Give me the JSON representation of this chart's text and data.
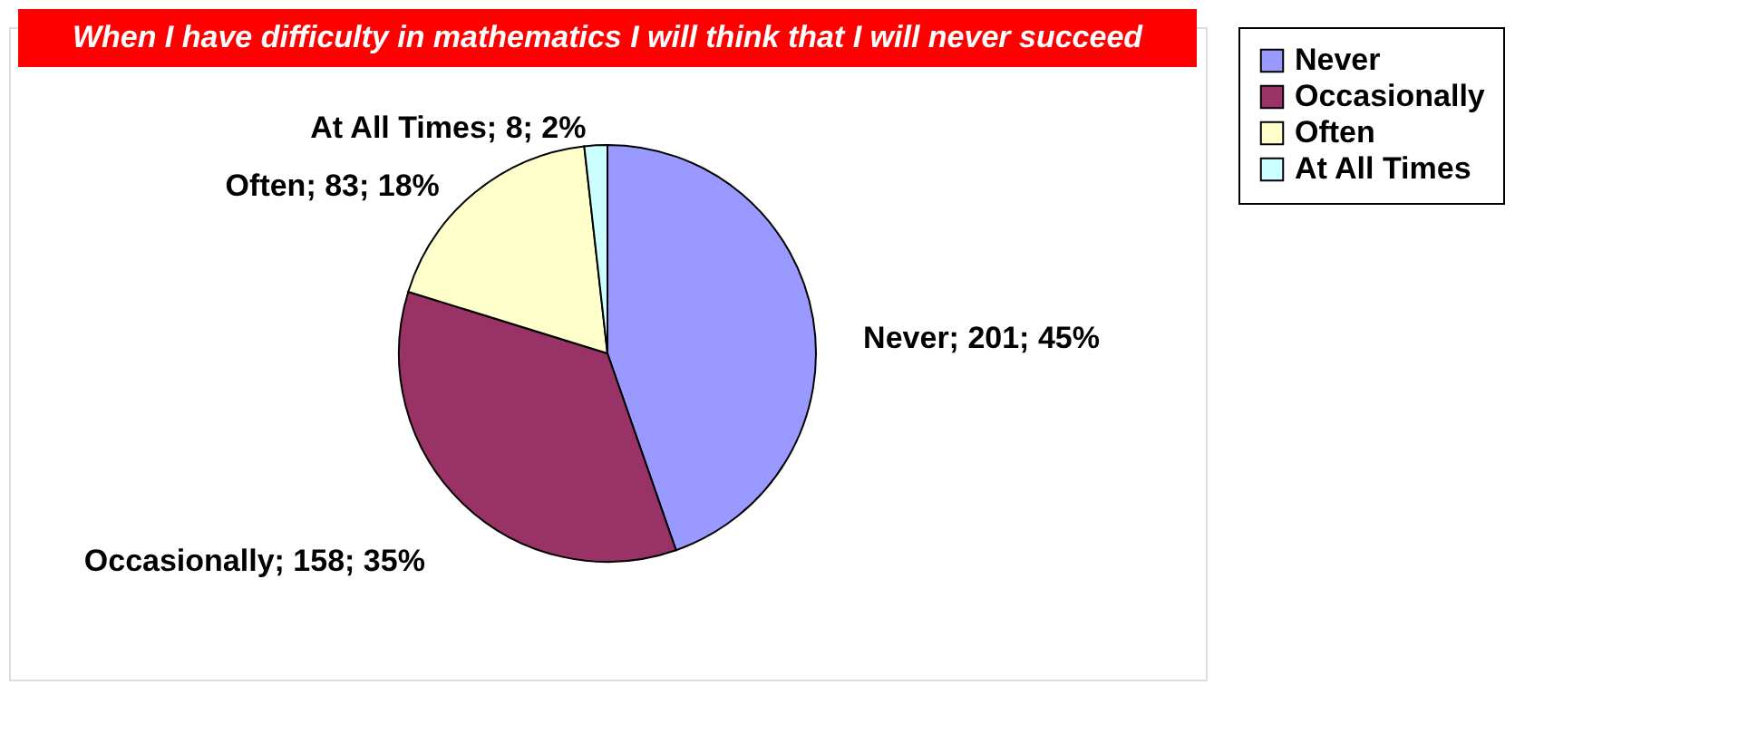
{
  "chart_data": {
    "type": "pie",
    "title": "When I have difficulty in mathematics I will think that I will never succeed",
    "categories": [
      "Never",
      "Occasionally",
      "Often",
      "At All Times"
    ],
    "values": [
      201,
      158,
      83,
      8
    ],
    "colors": [
      "#9999ff",
      "#993366",
      "#ffffcc",
      "#ccffff"
    ],
    "value_labels": [
      "Never; 201; 45%",
      "Occasionally; 158; 35%",
      "Often; 83; 18%",
      "At All Times; 8; 2%"
    ],
    "legend": "right"
  }
}
